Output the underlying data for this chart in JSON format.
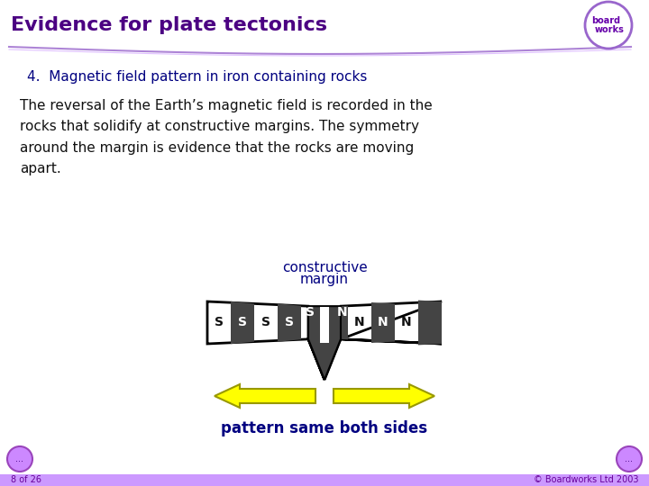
{
  "title": "Evidence for plate tectonics",
  "subtitle": "4.  Magnetic field pattern in iron containing rocks",
  "body_text": "The reversal of the Earth’s magnetic field is recorded in the\nrocks that solidify at constructive margins. The symmetry\naround the margin is evidence that the rocks are moving\napart.",
  "diagram_label_top1": "constructive",
  "diagram_label_top2": "margin",
  "diagram_label_bottom": "pattern same both sides",
  "bg_color": "#ffffff",
  "header_bg": "#f0eaf8",
  "title_color": "#4b0082",
  "subtitle_color": "#000080",
  "body_color": "#111111",
  "diagram_text_color": "#000080",
  "stripe_dark": "#444444",
  "stripe_light": "#ffffff",
  "arrow_color": "#ffff00",
  "arrow_edge": "#999900",
  "header_line_color": "#9370db",
  "bottom_bar_color": "#cc99ff",
  "bottom_text_color": "#660099"
}
